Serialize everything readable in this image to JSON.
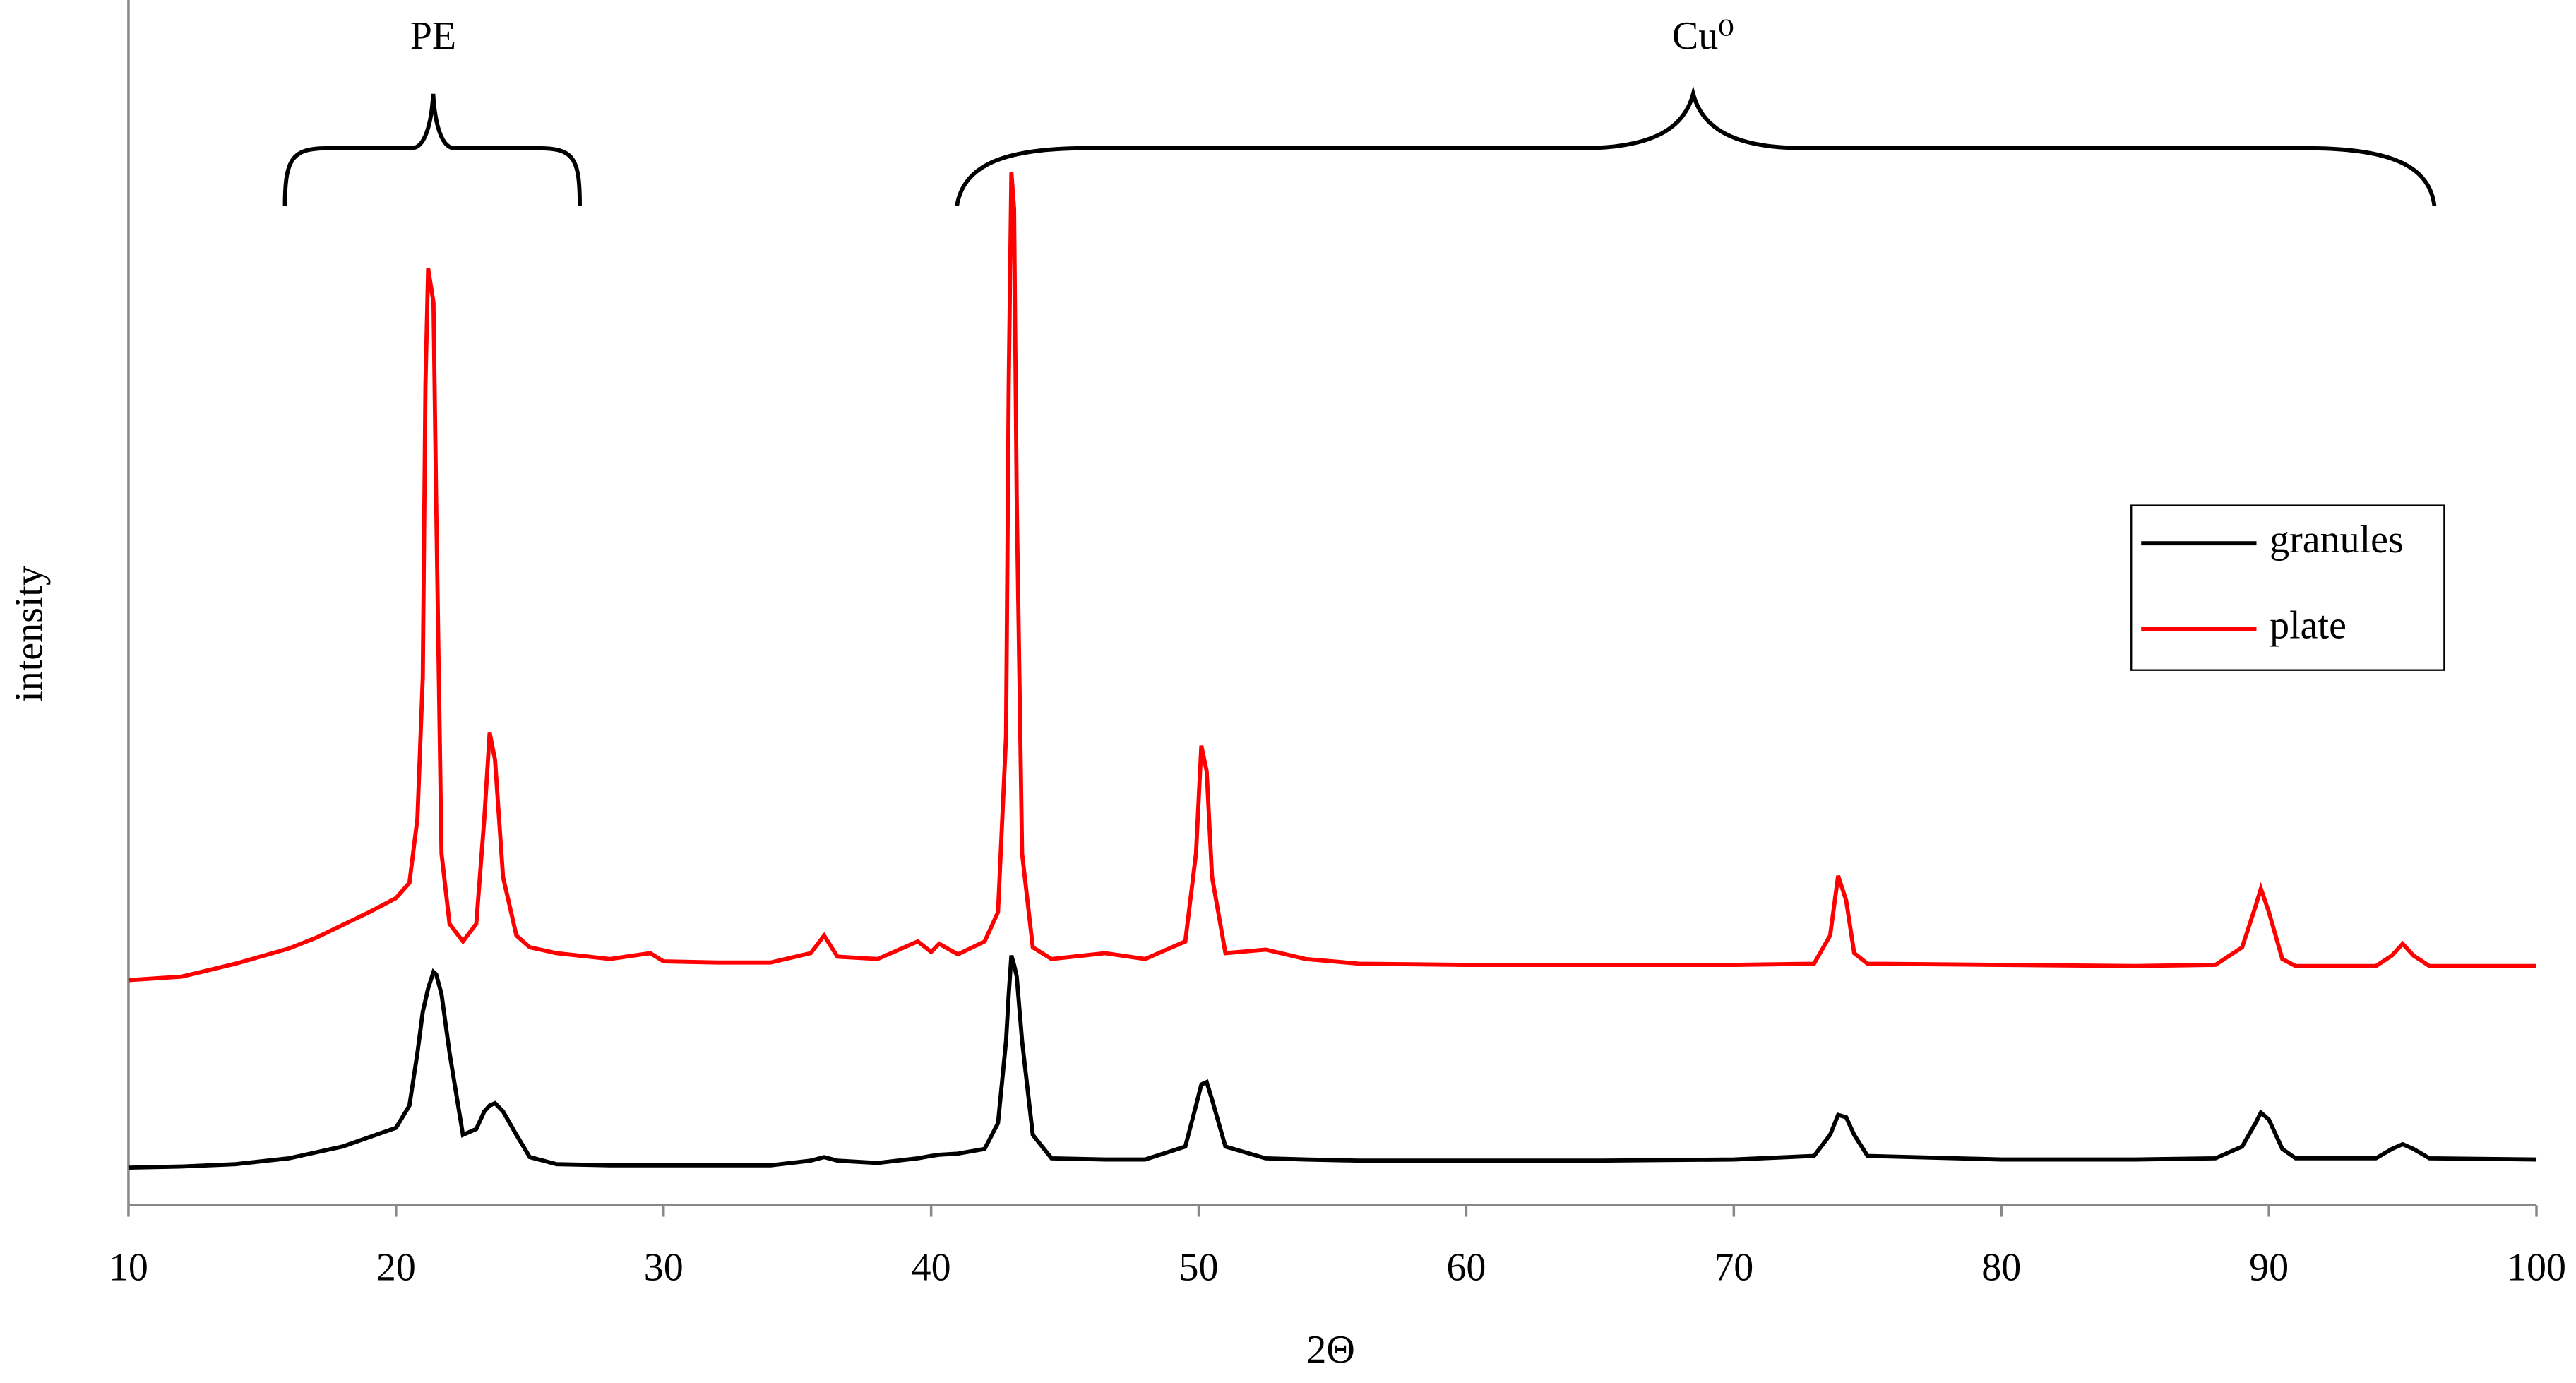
{
  "chart_data": {
    "type": "line",
    "x_label": "2Θ",
    "y_label": "intensity",
    "annotations": [
      "PE",
      "Cu⁰"
    ],
    "xlim": [
      10,
      100
    ],
    "xticks": [
      10,
      20,
      30,
      40,
      50,
      60,
      70,
      80,
      90,
      100
    ],
    "ylim": [
      0,
      100
    ],
    "legend": "right",
    "x": [
      10,
      12,
      14,
      16,
      17,
      18,
      19,
      20,
      20.5,
      20.8,
      21,
      21.1,
      21.2,
      21.4,
      21.5,
      21.7,
      22,
      22.5,
      23,
      23.3,
      23.5,
      23.7,
      24,
      24.5,
      25,
      26,
      28,
      29.5,
      30,
      32,
      34,
      35.5,
      36,
      36.5,
      38,
      39.5,
      40,
      40.3,
      41,
      42,
      42.5,
      42.8,
      42.9,
      43,
      43.1,
      43.2,
      43.4,
      43.8,
      44.5,
      46.5,
      48,
      49.5,
      49.9,
      50.1,
      50.3,
      50.5,
      51,
      52.5,
      54,
      56,
      60,
      65,
      70,
      73,
      73.6,
      73.9,
      74.2,
      74.5,
      75,
      80,
      85,
      88,
      89,
      89.5,
      89.7,
      90,
      90.5,
      91,
      94,
      94.6,
      95,
      95.4,
      96,
      100
    ],
    "series": [
      {
        "name": "granules",
        "color": "#000000",
        "values": [
          3.2,
          3.3,
          3.5,
          4,
          4.5,
          5,
          5.8,
          6.6,
          8.5,
          13,
          16.5,
          17.5,
          18.5,
          19.9,
          19.7,
          18,
          13,
          6,
          6.5,
          8,
          8.5,
          8.7,
          8,
          6,
          4.1,
          3.5,
          3.4,
          3.4,
          3.4,
          3.4,
          3.4,
          3.8,
          4.1,
          3.8,
          3.6,
          4,
          4.2,
          4.3,
          4.4,
          4.8,
          7,
          14,
          18,
          21.3,
          20.5,
          19.5,
          14,
          6,
          4,
          3.9,
          3.9,
          5,
          8.5,
          10.3,
          10.5,
          9,
          5,
          4,
          3.9,
          3.8,
          3.8,
          3.8,
          3.9,
          4.2,
          6,
          7.7,
          7.5,
          6,
          4.2,
          3.9,
          3.9,
          4,
          5,
          7,
          7.9,
          7.3,
          4.8,
          4,
          4,
          4.8,
          5.2,
          4.8,
          4,
          3.9
        ]
      },
      {
        "name": "plate",
        "color": "#ff0000",
        "values": [
          19.2,
          19.5,
          20.6,
          21.9,
          22.8,
          23.9,
          25,
          26.2,
          27.5,
          33,
          45,
          70,
          79.9,
          77,
          60,
          30,
          24,
          22.5,
          24,
          33,
          40.3,
          38,
          28,
          23,
          22,
          21.5,
          21,
          21.5,
          20.8,
          20.7,
          20.7,
          21.5,
          23,
          21.2,
          21,
          22.5,
          21.6,
          22.3,
          21.4,
          22.5,
          25,
          40,
          70,
          88.1,
          85,
          60,
          30,
          22,
          21,
          21.5,
          21,
          22.5,
          30,
          39.2,
          37,
          28,
          21.5,
          21.8,
          21,
          20.6,
          20.5,
          20.5,
          20.5,
          20.6,
          23,
          28.1,
          26,
          21.5,
          20.6,
          20.5,
          20.4,
          20.5,
          22,
          25.5,
          27,
          25,
          21,
          20.4,
          20.4,
          21.3,
          22.3,
          21.3,
          20.4,
          20.4
        ]
      }
    ]
  }
}
